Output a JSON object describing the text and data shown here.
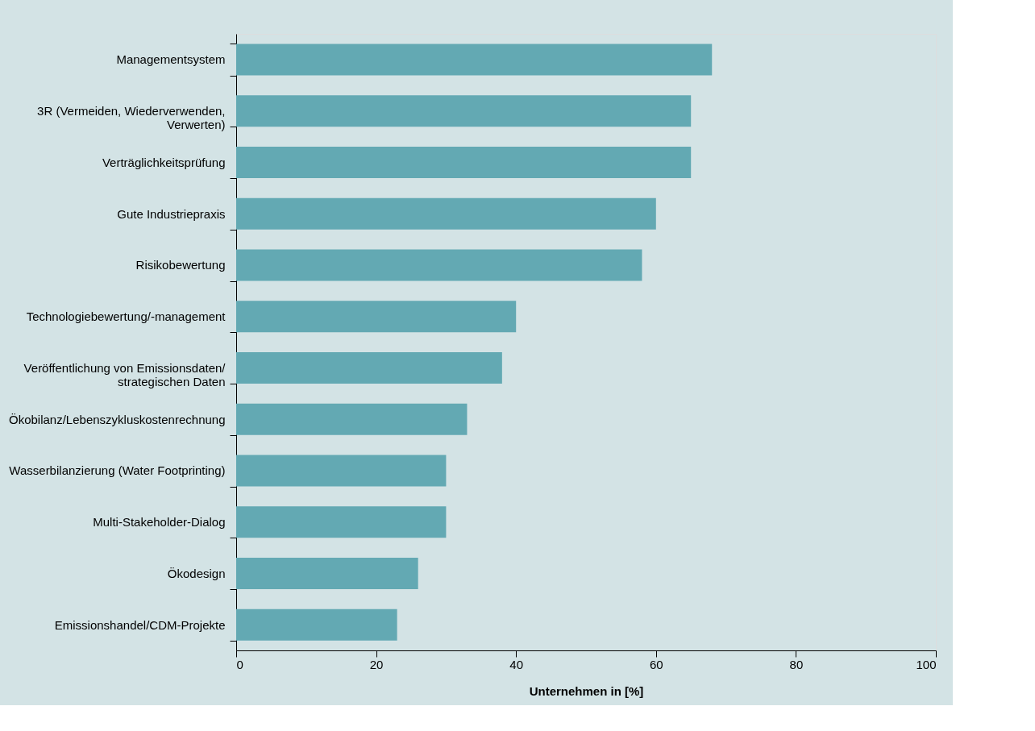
{
  "chart_data": {
    "type": "bar",
    "orientation": "horizontal",
    "xlabel": "Unternehmen in [%]",
    "categories": [
      "Managementsystem",
      "3R (Vermeiden, Wiederverwenden,\nVerwerten)",
      "Verträglichkeitsprüfung",
      "Gute Industriepraxis",
      "Risikobewertung",
      "Technologiebewertung/-management",
      "Veröffentlichung von Emissionsdaten/\nstrategischen Daten",
      "Ökobilanz/Lebenszykluskostenrechnung",
      "Wasserbilanzierung (Water Footprinting)",
      "Multi-Stakeholder-Dialog",
      "Ökodesign",
      "Emissionshandel/CDM-Projekte"
    ],
    "values": [
      68,
      65,
      65,
      60,
      58,
      40,
      38,
      33,
      30,
      30,
      26,
      23
    ],
    "color": "#63a9b3",
    "xlim": [
      0,
      100
    ],
    "xticks": [
      0,
      20,
      40,
      60,
      80,
      100
    ],
    "grid": false
  }
}
